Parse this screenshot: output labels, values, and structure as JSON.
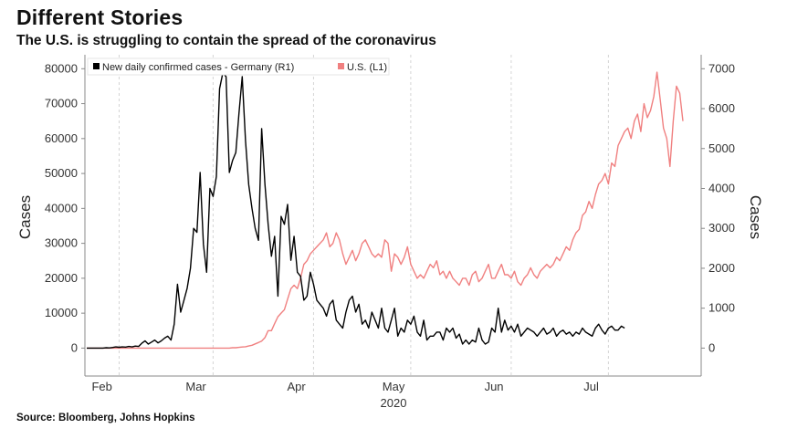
{
  "header": {
    "title": "Different Stories",
    "subtitle": "The U.S. is struggling to contain the spread of the coronavirus"
  },
  "footer": {
    "source": "Source: Bloomberg, Johns Hopkins"
  },
  "chart_data": {
    "type": "line",
    "title": "Different Stories",
    "subtitle": "The U.S. is struggling to contain the spread of the coronavirus",
    "ylabel_left": "Cases",
    "ylabel_right": "Cases",
    "xlabel": "2020",
    "x_tick_labels": [
      "Feb",
      "Mar",
      "Apr",
      "May",
      "Jun",
      "Jul"
    ],
    "y_left_ticks": [
      "0",
      "10000",
      "20000",
      "30000",
      "40000",
      "50000",
      "60000",
      "70000",
      "80000"
    ],
    "y_right_ticks": [
      "0",
      "1000",
      "2000",
      "3000",
      "4000",
      "5000",
      "6000",
      "7000"
    ],
    "ylim_left": [
      -8000,
      84000
    ],
    "ylim_right": [
      -700,
      7350
    ],
    "legend": {
      "position": "top-left"
    },
    "grid": "vertical dashed at month boundaries",
    "colors": {
      "germany": "#000000",
      "us": "#f08080"
    },
    "series": [
      {
        "name": "New daily confirmed cases - Germany (R1)",
        "axis": "right",
        "start": "2020-01-22",
        "values": [
          0,
          0,
          0,
          0,
          0,
          0,
          10,
          5,
          15,
          30,
          20,
          30,
          25,
          40,
          30,
          50,
          40,
          120,
          180,
          100,
          150,
          200,
          130,
          180,
          250,
          300,
          200,
          600,
          1600,
          900,
          1200,
          1500,
          2000,
          3000,
          2900,
          4400,
          2600,
          1900,
          4000,
          3800,
          4300,
          6500,
          6900,
          6800,
          4400,
          4700,
          4900,
          5900,
          6800,
          5200,
          4100,
          3500,
          3000,
          2700,
          5500,
          4100,
          3100,
          2300,
          2800,
          1300,
          3300,
          3100,
          3600,
          2200,
          2800,
          1900,
          1800,
          1200,
          1300,
          1900,
          1600,
          1200,
          1100,
          1000,
          800,
          1100,
          1200,
          700,
          600,
          500,
          900,
          1200,
          1300,
          900,
          1100,
          600,
          700,
          500,
          900,
          700,
          500,
          1000,
          500,
          400,
          700,
          1000,
          300,
          500,
          400,
          700,
          600,
          800,
          400,
          300,
          700,
          200,
          300,
          300,
          400,
          400,
          200,
          500,
          400,
          500,
          250,
          350,
          100,
          200,
          100,
          200,
          150,
          500,
          200,
          100,
          150,
          500,
          400,
          1000,
          400,
          700,
          450,
          550,
          400,
          600,
          300,
          400,
          500,
          450,
          400,
          300,
          400,
          500,
          350,
          400,
          500,
          300,
          400,
          450,
          350,
          400,
          300,
          400,
          350,
          500,
          400,
          350,
          300,
          500,
          600,
          450,
          350,
          500,
          550,
          450,
          450,
          550,
          500
        ]
      },
      {
        "name": "U.S. (L1)",
        "axis": "left",
        "start": "2020-01-22",
        "values": [
          0,
          0,
          0,
          0,
          0,
          0,
          0,
          0,
          0,
          0,
          0,
          0,
          0,
          0,
          0,
          0,
          0,
          0,
          0,
          0,
          0,
          0,
          0,
          0,
          0,
          0,
          0,
          0,
          0,
          0,
          0,
          0,
          0,
          0,
          0,
          0,
          0,
          0,
          0,
          0,
          0,
          0,
          0,
          0,
          0,
          100,
          100,
          200,
          300,
          400,
          600,
          800,
          1200,
          1600,
          2000,
          3000,
          5000,
          5000,
          7000,
          9000,
          10000,
          11000,
          14000,
          17000,
          18000,
          17000,
          20000,
          24000,
          25000,
          27000,
          28000,
          29000,
          30000,
          31000,
          33000,
          29000,
          30000,
          33000,
          31000,
          27000,
          24000,
          26000,
          28000,
          25000,
          27000,
          30000,
          31000,
          29000,
          27000,
          26000,
          27000,
          26000,
          31000,
          30000,
          22000,
          27000,
          26000,
          24000,
          26000,
          29000,
          24000,
          22000,
          20000,
          21000,
          20000,
          22000,
          24000,
          23000,
          25000,
          21000,
          22000,
          20000,
          22000,
          20000,
          19000,
          18000,
          20000,
          20000,
          18000,
          21000,
          22000,
          19000,
          20000,
          22000,
          24000,
          20000,
          20000,
          22000,
          24000,
          21000,
          21000,
          20000,
          22000,
          19000,
          18000,
          20000,
          21000,
          23000,
          21000,
          20000,
          22000,
          23000,
          24000,
          23000,
          24000,
          26000,
          25000,
          27000,
          29000,
          28000,
          31000,
          33000,
          34000,
          38000,
          39000,
          42000,
          40000,
          44000,
          47000,
          48000,
          50000,
          47000,
          53000,
          52000,
          58000,
          60000,
          62000,
          63000,
          60000,
          65000,
          67000,
          62000,
          70000,
          66000,
          68000,
          72000,
          79000,
          71000,
          63000,
          60000,
          52000,
          65000,
          75000,
          73000,
          65000
        ]
      }
    ]
  }
}
